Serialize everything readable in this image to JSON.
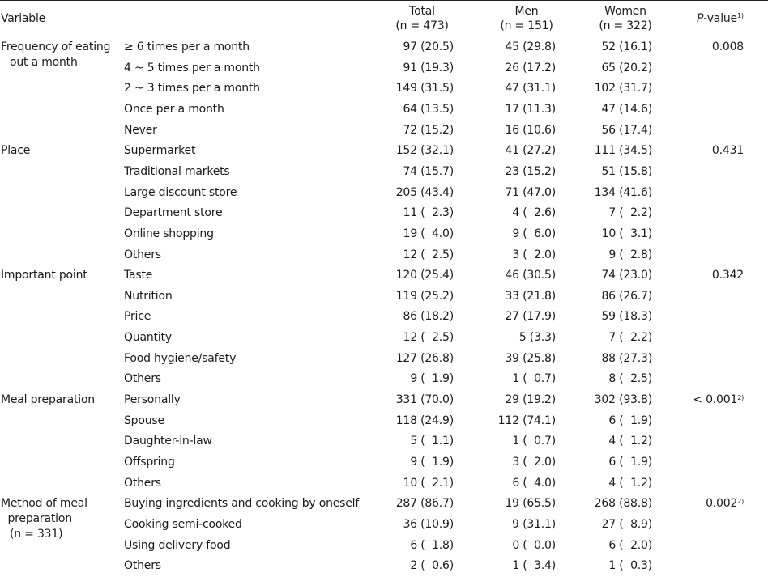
{
  "header": {
    "variable": "Variable",
    "total_label": "Total",
    "total_n": "(n = 473)",
    "men_label": "Men",
    "men_n": "(n = 151)",
    "women_label": "Women",
    "women_n": "(n = 322)",
    "pvalue_label": "P",
    "pvalue_rest": "-value",
    "pvalue_sup": "1)"
  },
  "groups": [
    {
      "variable_lines": [
        "Frequency of eating",
        "out a month"
      ],
      "pvalue": "0.008",
      "pvalue_sup": "",
      "rows": [
        {
          "level": "≥ 6 times per a month",
          "total": "97 (20.5)",
          "men": "45 (29.8)",
          "women": "52 (16.1)"
        },
        {
          "level": "4 ~ 5 times per a month",
          "total": "91 (19.3)",
          "men": "26 (17.2)",
          "women": "65 (20.2)"
        },
        {
          "level": "2 ~ 3 times per a month",
          "total": "149 (31.5)",
          "men": "47 (31.1)",
          "women": "102 (31.7)"
        },
        {
          "level": "Once per a month",
          "total": "64 (13.5)",
          "men": "17 (11.3)",
          "women": "47 (14.6)"
        },
        {
          "level": "Never",
          "total": "72 (15.2)",
          "men": "16 (10.6)",
          "women": "56 (17.4)"
        }
      ]
    },
    {
      "variable_lines": [
        "Place"
      ],
      "pvalue": "0.431",
      "pvalue_sup": "",
      "rows": [
        {
          "level": "Supermarket",
          "total": "152 (32.1)",
          "men": "41 (27.2)",
          "women": "111 (34.5)"
        },
        {
          "level": "Traditional markets",
          "total": "74 (15.7)",
          "men": "23 (15.2)",
          "women": "51 (15.8)"
        },
        {
          "level": "Large discount store",
          "total": "205 (43.4)",
          "men": "71 (47.0)",
          "women": "134 (41.6)"
        },
        {
          "level": "Department store",
          "total": "11 (  2.3)",
          "men": "4 (  2.6)",
          "women": "7 (  2.2)"
        },
        {
          "level": "Online shopping",
          "total": "19 (  4.0)",
          "men": "9 (  6.0)",
          "women": "10 (  3.1)"
        },
        {
          "level": "Others",
          "total": "12 (  2.5)",
          "men": "3 (  2.0)",
          "women": "9 (  2.8)"
        }
      ]
    },
    {
      "variable_lines": [
        "Important point"
      ],
      "pvalue": "0.342",
      "pvalue_sup": "",
      "rows": [
        {
          "level": "Taste",
          "total": "120 (25.4)",
          "men": "46 (30.5)",
          "women": "74 (23.0)"
        },
        {
          "level": "Nutrition",
          "total": "119 (25.2)",
          "men": "33 (21.8)",
          "women": "86 (26.7)"
        },
        {
          "level": "Price",
          "total": "86 (18.2)",
          "men": "27 (17.9)",
          "women": "59 (18.3)"
        },
        {
          "level": "Quantity",
          "total": "12 (  2.5)",
          "men": "5 (3.3)",
          "women": "7 (  2.2)"
        },
        {
          "level": "Food hygiene/safety",
          "total": "127 (26.8)",
          "men": "39 (25.8)",
          "women": "88 (27.3)"
        },
        {
          "level": "Others",
          "total": "9 (  1.9)",
          "men": "1 (  0.7)",
          "women": "8 (  2.5)"
        }
      ]
    },
    {
      "variable_lines": [
        "Meal preparation"
      ],
      "pvalue": "< 0.001",
      "pvalue_sup": "2)",
      "rows": [
        {
          "level": "Personally",
          "total": "331 (70.0)",
          "men": "29 (19.2)",
          "women": "302 (93.8)"
        },
        {
          "level": "Spouse",
          "total": "118 (24.9)",
          "men": "112 (74.1)",
          "women": "6 (  1.9)"
        },
        {
          "level": "Daughter-in-law",
          "total": "5 (  1.1)",
          "men": "1 (  0.7)",
          "women": "4 (  1.2)"
        },
        {
          "level": "Offspring",
          "total": "9 (  1.9)",
          "men": "3 (  2.0)",
          "women": "6 (  1.9)"
        },
        {
          "level": "Others",
          "total": "10 (  2.1)",
          "men": "6 (  4.0)",
          "women": "4 (  1.2)"
        }
      ]
    },
    {
      "variable_lines": [
        "Method of meal",
        "  preparation",
        "(n = 331)"
      ],
      "pvalue": "0.002",
      "pvalue_sup": "2)",
      "rows": [
        {
          "level": "Buying ingredients and cooking by oneself",
          "total": "287 (86.7)",
          "men": "19 (65.5)",
          "women": "268 (88.8)"
        },
        {
          "level": "Cooking semi-cooked",
          "total": "36 (10.9)",
          "men": "9 (31.1)",
          "women": "27 (  8.9)"
        },
        {
          "level": "Using delivery food",
          "total": "6 (  1.8)",
          "men": "0 (  0.0)",
          "women": "6 (  2.0)"
        },
        {
          "level": "Others",
          "total": "2 (  0.6)",
          "men": "1 (  3.4)",
          "women": "1 (  0.3)"
        }
      ]
    }
  ]
}
